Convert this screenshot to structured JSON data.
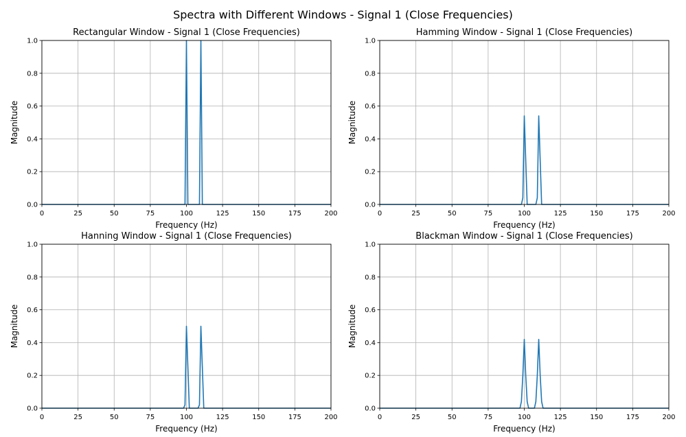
{
  "suptitle": "Spectra with Different Windows - Signal 1 (Close Frequencies)",
  "colors": {
    "line": "#1f77b4",
    "grid": "#b0b0b0",
    "axes": "#000000"
  },
  "chart_data": [
    {
      "type": "line",
      "title": "Rectangular Window - Signal 1 (Close Frequencies)",
      "xlabel": "Frequency (Hz)",
      "ylabel": "Magnitude",
      "xlim": [
        0,
        200
      ],
      "ylim": [
        0,
        1.0
      ],
      "xticks": [
        0,
        25,
        50,
        75,
        100,
        125,
        150,
        175,
        200
      ],
      "yticks": [
        0.0,
        0.2,
        0.4,
        0.6,
        0.8,
        1.0
      ],
      "grid": true,
      "series": [
        {
          "x": [
            0,
            99,
            100,
            101,
            102,
            108,
            109,
            110,
            111,
            200
          ],
          "y": [
            0,
            0,
            1.0,
            0,
            0,
            0,
            0,
            1.0,
            0,
            0
          ]
        }
      ]
    },
    {
      "type": "line",
      "title": "Hamming Window - Signal 1 (Close Frequencies)",
      "xlabel": "Frequency (Hz)",
      "ylabel": "Magnitude",
      "xlim": [
        0,
        200
      ],
      "ylim": [
        0,
        1.0
      ],
      "xticks": [
        0,
        25,
        50,
        75,
        100,
        125,
        150,
        175,
        200
      ],
      "yticks": [
        0.0,
        0.2,
        0.4,
        0.6,
        0.8,
        1.0
      ],
      "grid": true,
      "series": [
        {
          "x": [
            0,
            98,
            99,
            100,
            101,
            102,
            108,
            109,
            110,
            111,
            112,
            200
          ],
          "y": [
            0,
            0,
            0.04,
            0.54,
            0.27,
            0,
            0,
            0.04,
            0.54,
            0.27,
            0,
            0
          ]
        }
      ]
    },
    {
      "type": "line",
      "title": "Hanning Window - Signal 1 (Close Frequencies)",
      "xlabel": "Frequency (Hz)",
      "ylabel": "Magnitude",
      "xlim": [
        0,
        200
      ],
      "ylim": [
        0,
        1.0
      ],
      "xticks": [
        0,
        25,
        50,
        75,
        100,
        125,
        150,
        175,
        200
      ],
      "yticks": [
        0.0,
        0.2,
        0.4,
        0.6,
        0.8,
        1.0
      ],
      "grid": true,
      "series": [
        {
          "x": [
            0,
            98,
            99,
            100,
            101,
            102,
            108,
            109,
            110,
            111,
            112,
            200
          ],
          "y": [
            0,
            0,
            0.02,
            0.5,
            0.25,
            0,
            0,
            0.02,
            0.5,
            0.25,
            0,
            0
          ]
        }
      ]
    },
    {
      "type": "line",
      "title": "Blackman Window - Signal 1 (Close Frequencies)",
      "xlabel": "Frequency (Hz)",
      "ylabel": "Magnitude",
      "xlim": [
        0,
        200
      ],
      "ylim": [
        0,
        1.0
      ],
      "xticks": [
        0,
        25,
        50,
        75,
        100,
        125,
        150,
        175,
        200
      ],
      "yticks": [
        0.0,
        0.2,
        0.4,
        0.6,
        0.8,
        1.0
      ],
      "grid": true,
      "series": [
        {
          "x": [
            0,
            97,
            98,
            99,
            100,
            101,
            102,
            103,
            107,
            108,
            109,
            110,
            111,
            112,
            113,
            200
          ],
          "y": [
            0,
            0,
            0.04,
            0.2,
            0.42,
            0.2,
            0.04,
            0,
            0,
            0.04,
            0.2,
            0.42,
            0.2,
            0.04,
            0,
            0
          ]
        }
      ]
    }
  ]
}
